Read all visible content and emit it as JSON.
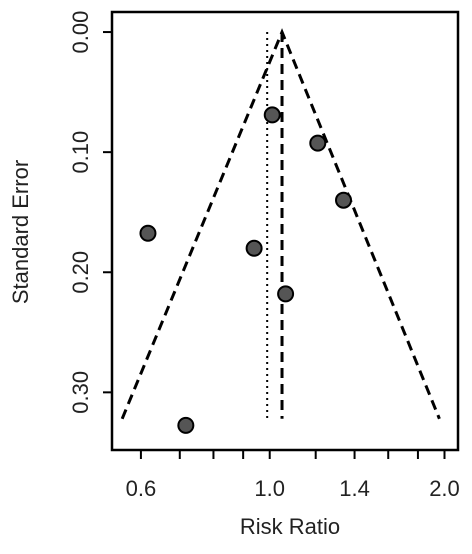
{
  "chart_data": {
    "type": "funnel",
    "x_label": "Risk Ratio",
    "y_label": "Standard Error",
    "x_log": true,
    "y_reversed": true,
    "xlim": [
      0.535,
      2.11
    ],
    "ylim": [
      -0.0167,
      0.348
    ],
    "xticks": [
      0.6,
      {
        "value": 1.0,
        "label": "1.0"
      },
      1.4,
      {
        "value": 2.0,
        "label": "2.0"
      }
    ],
    "xminor_ticks": [
      0.7,
      0.8,
      0.9,
      1.2,
      1.6,
      1.8
    ],
    "yticks": [
      {
        "value": 0,
        "label": "0.00"
      },
      {
        "value": 0.1,
        "label": "0.10"
      },
      {
        "value": 0.2,
        "label": "0.20"
      },
      {
        "value": 0.3,
        "label": "0.30"
      }
    ],
    "series": [
      {
        "color": "#555555",
        "x": [
          1.01,
          1.21,
          1.34,
          0.617,
          0.94,
          1.065,
          0.717
        ],
        "values": [
          0.069,
          0.0925,
          0.14,
          0.1675,
          0.18,
          0.218,
          0.3275
        ]
      }
    ],
    "null_line": {
      "x": 0.99,
      "y": [
        0,
        0.322
      ]
    },
    "summary_line": {
      "x": 1.05,
      "y": [
        0,
        0.322
      ]
    },
    "funnel": {
      "x": [
        0.557,
        1.05,
        1.96
      ],
      "y": [
        0.322,
        0,
        0.322
      ]
    }
  }
}
